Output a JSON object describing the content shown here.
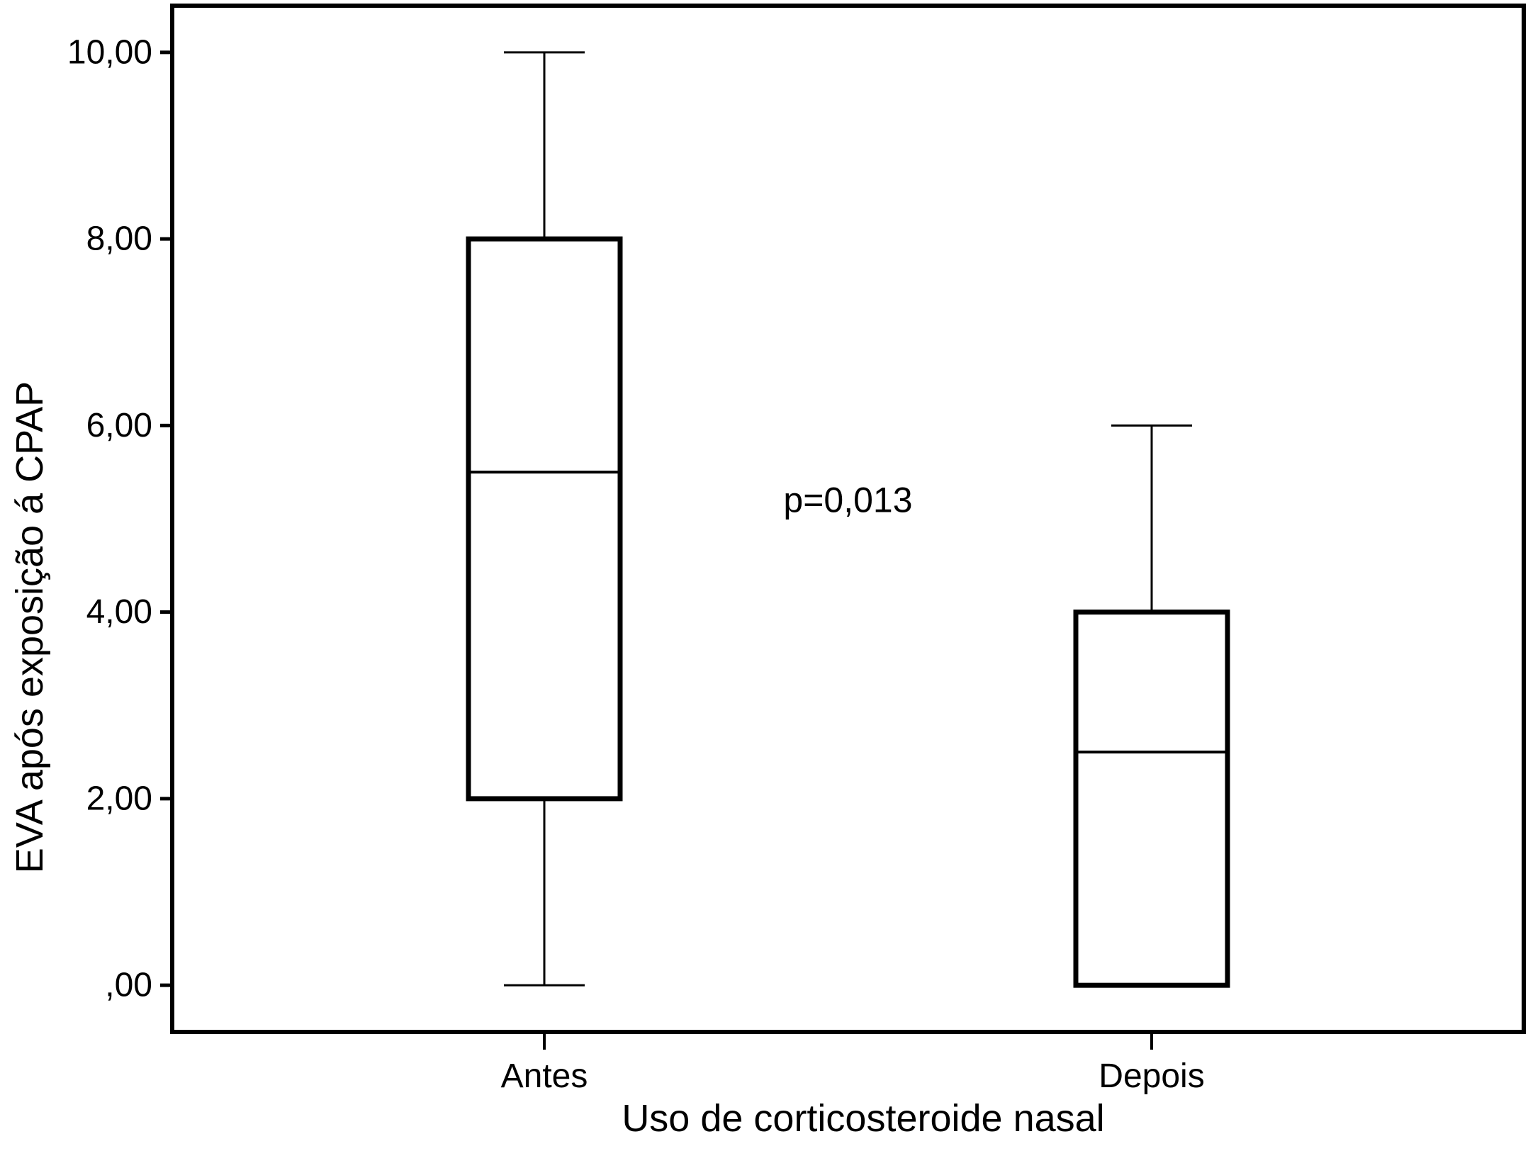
{
  "chart_data": {
    "type": "boxplot",
    "title": "",
    "xlabel": "Uso de corticosteroide nasal",
    "ylabel": "EVA após exposição á CPAP",
    "categories": [
      "Antes",
      "Depois"
    ],
    "ylim": [
      -0.5,
      10.5
    ],
    "yticks": [
      0,
      2,
      4,
      6,
      8,
      10
    ],
    "ytick_labels": [
      ",00",
      "2,00",
      "4,00",
      "6,00",
      "8,00",
      "10,00"
    ],
    "boxes": [
      {
        "category": "Antes",
        "min": 0,
        "q1": 2,
        "median": 5.5,
        "q3": 8,
        "max": 10
      },
      {
        "category": "Depois",
        "min": 0,
        "q1": 0,
        "median": 2.5,
        "q3": 4,
        "max": 6
      }
    ],
    "annotations": [
      {
        "text": "p=0,013",
        "x": 0.5,
        "y": 5.2
      }
    ],
    "grid": false,
    "legend": "none",
    "colors": {
      "box_fill": "#ffffff",
      "stroke": "#000000"
    }
  }
}
